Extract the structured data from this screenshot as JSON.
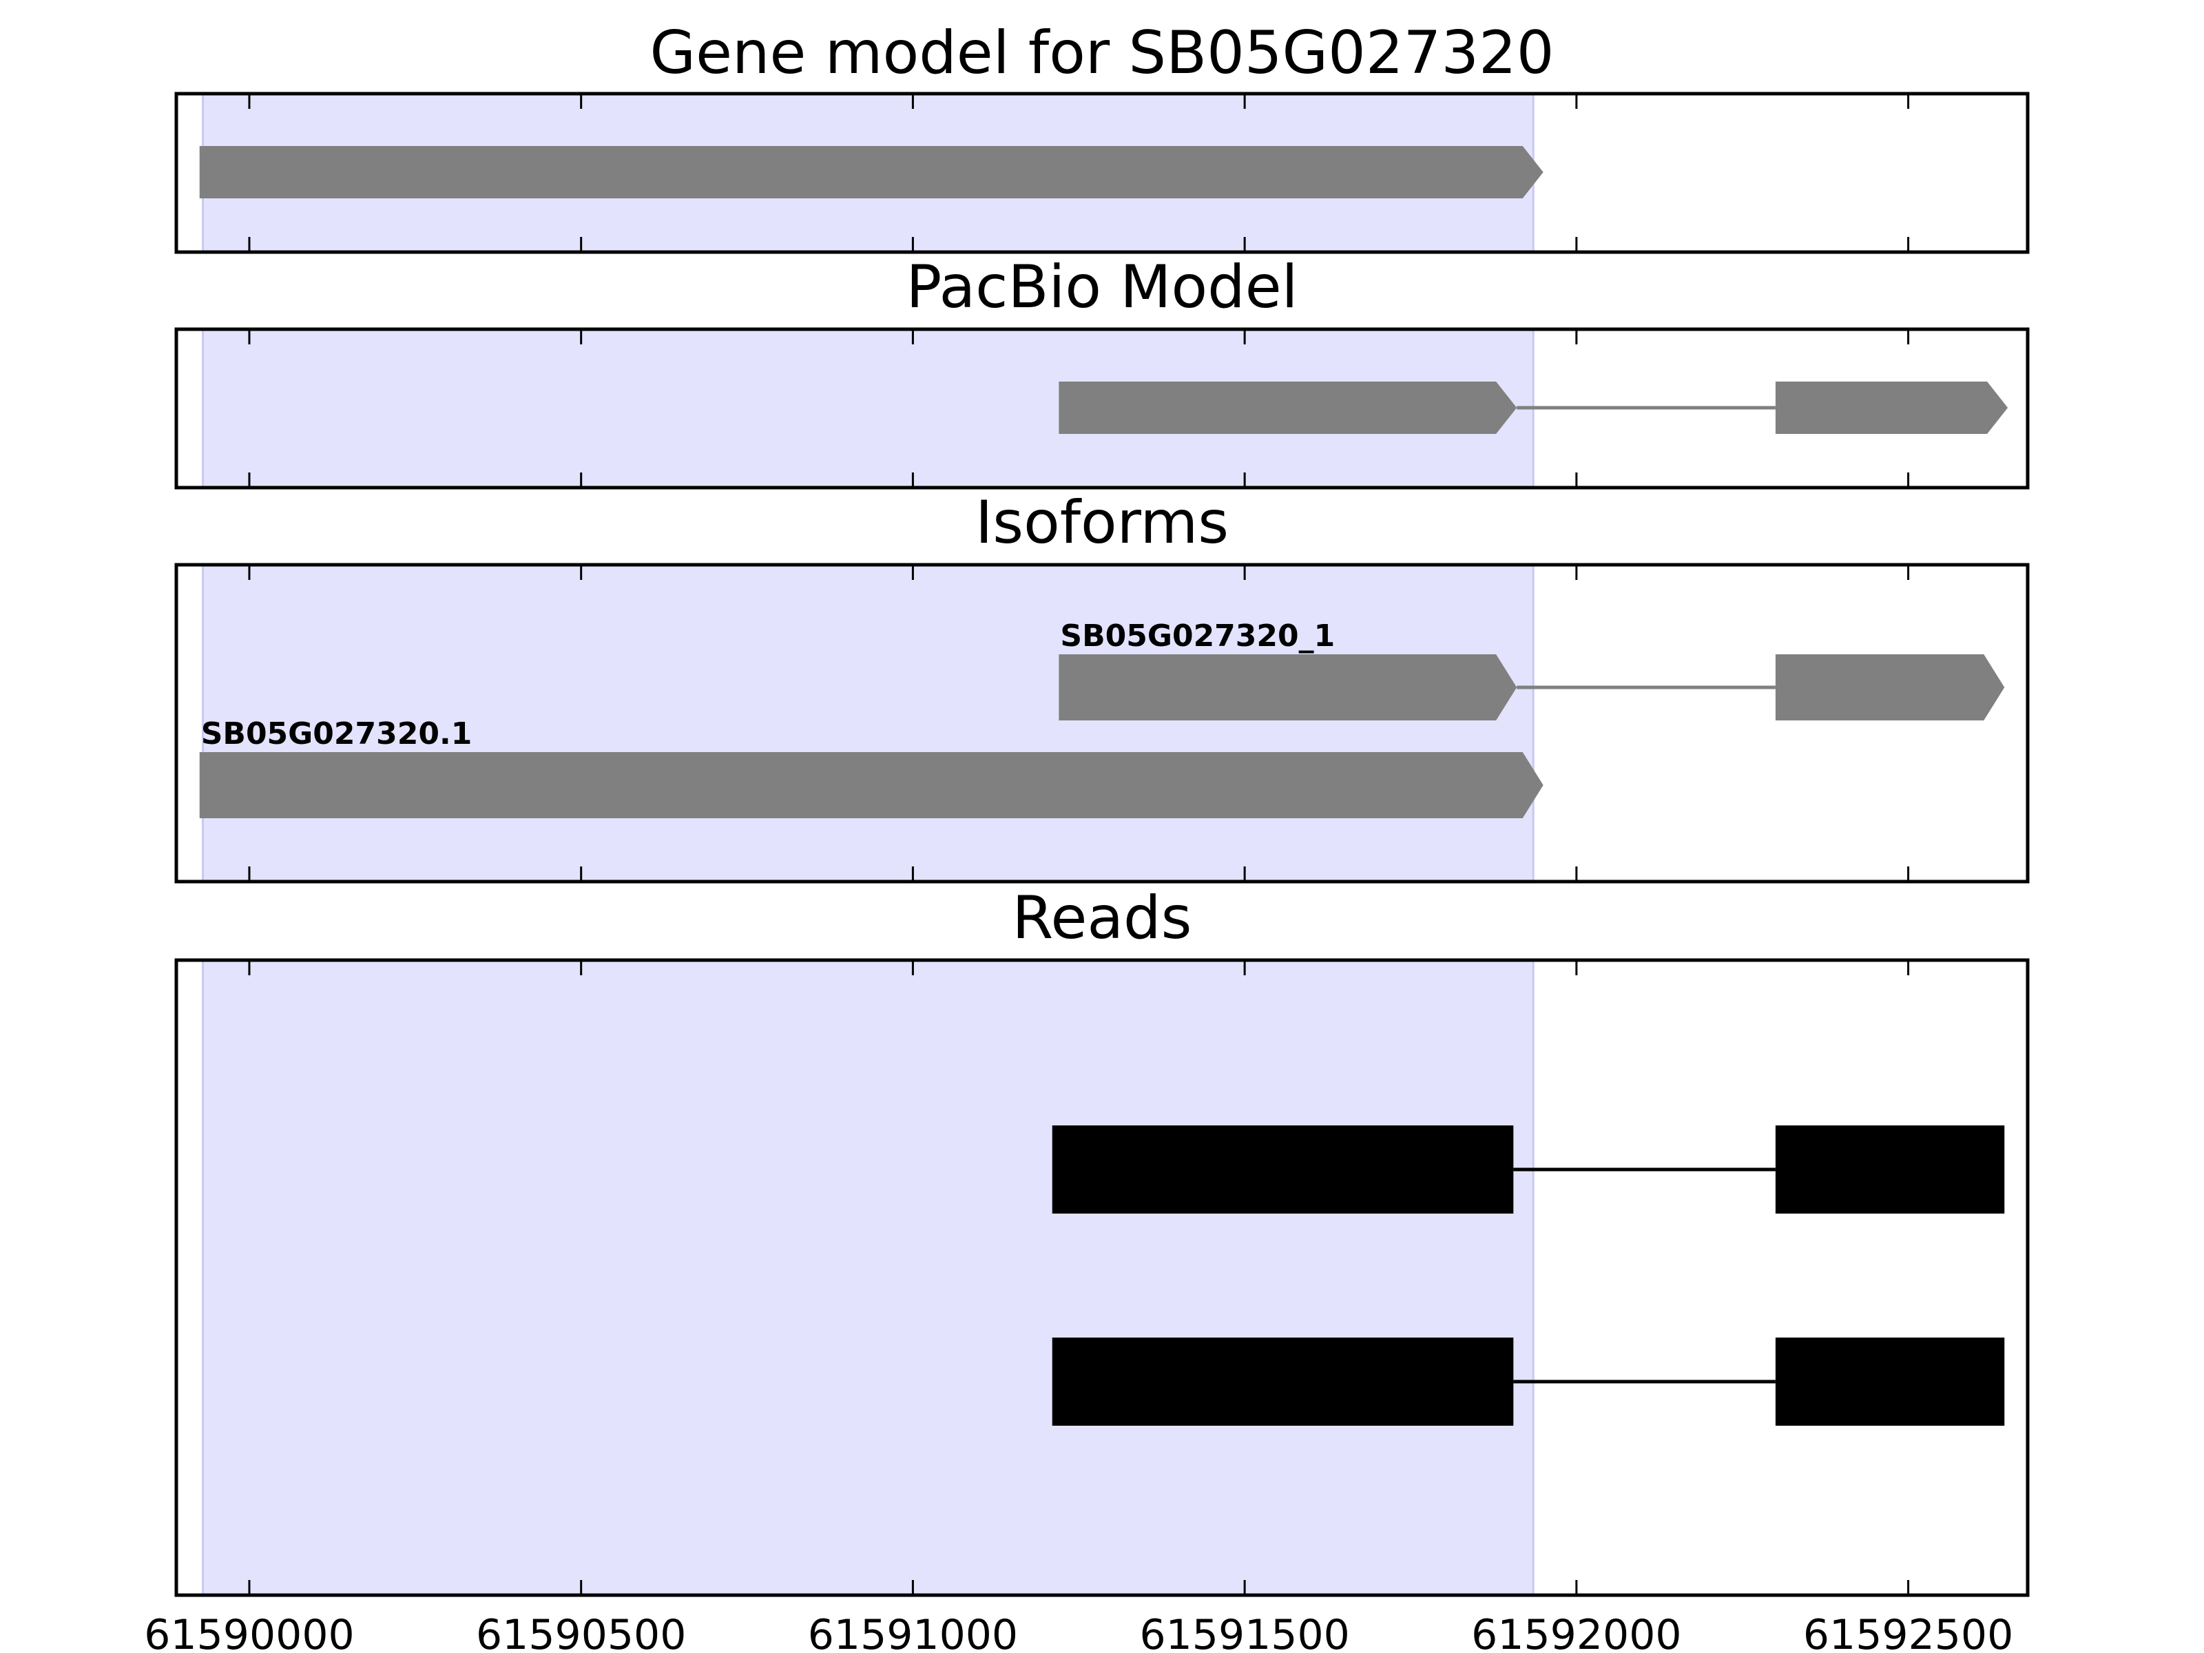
{
  "chart_data": {
    "type": "gene-track",
    "title": "Gene model for SB05G027320",
    "x_range": [
      61589890,
      61592680
    ],
    "x_ticks": [
      61590000,
      61590500,
      61591000,
      61591500,
      61592000,
      61592500
    ],
    "x_tick_labels": [
      "61590000",
      "61590500",
      "61591000",
      "61591500",
      "61592000",
      "61592500"
    ],
    "highlight_region": {
      "start": 61589930,
      "end": 61591935
    },
    "colors": {
      "highlight": "#e3e3fd",
      "highlight_edge": "#c9c9f2",
      "model_feature": "#808080",
      "read_feature": "#000000",
      "frame": "#000000"
    },
    "panels": [
      {
        "id": "gene-model",
        "title": "",
        "features": [
          {
            "strand": "+",
            "exons": [
              [
                61589925,
                61591950
              ]
            ]
          }
        ]
      },
      {
        "id": "pacbio-model",
        "title": "PacBio Model",
        "features": [
          {
            "strand": "+",
            "exons": [
              [
                61591220,
                61591910
              ],
              [
                61592300,
                61592650
              ]
            ]
          }
        ]
      },
      {
        "id": "isoforms",
        "title": "Isoforms",
        "features": [
          {
            "label": "SB05G027320_1",
            "strand": "+",
            "row": 0,
            "exons": [
              [
                61591220,
                61591910
              ],
              [
                61592300,
                61592645
              ]
            ]
          },
          {
            "label": "SB05G027320.1",
            "strand": "+",
            "row": 1,
            "exons": [
              [
                61589925,
                61591950
              ]
            ]
          }
        ]
      },
      {
        "id": "reads",
        "title": "Reads",
        "features": [
          {
            "row": 0,
            "exons": [
              [
                61591210,
                61591905
              ],
              [
                61592300,
                61592645
              ]
            ]
          },
          {
            "row": 1,
            "exons": [
              [
                61591210,
                61591905
              ],
              [
                61592300,
                61592645
              ]
            ]
          }
        ]
      }
    ]
  }
}
